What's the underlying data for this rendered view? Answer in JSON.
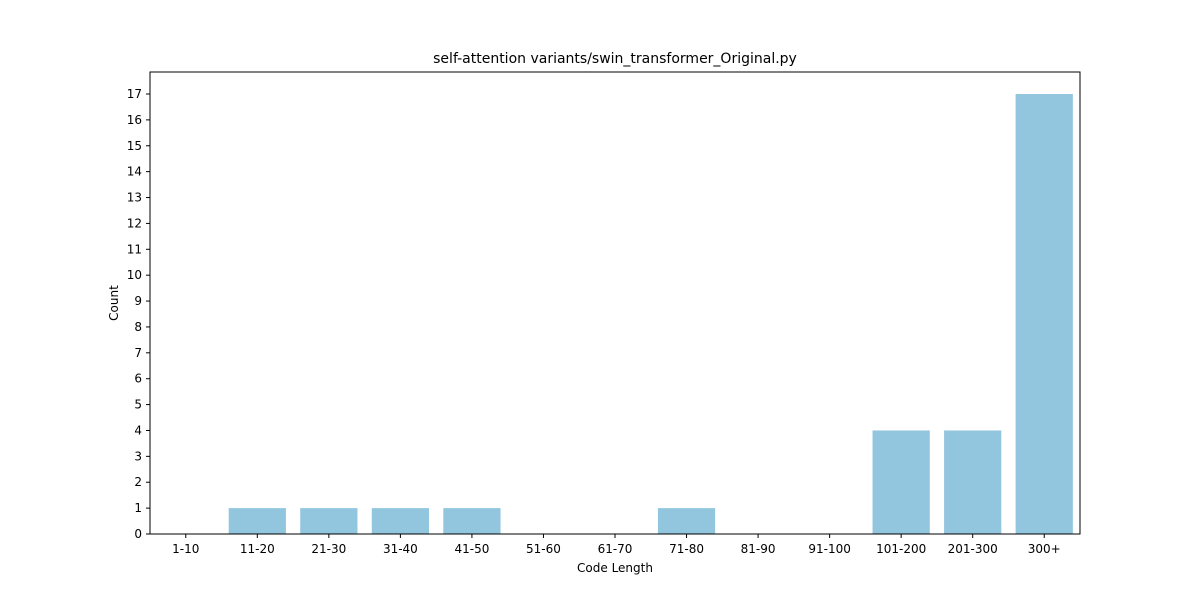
{
  "chart_data": {
    "type": "bar",
    "title": "self-attention variants/swin_transformer_Original.py",
    "xlabel": "Code Length",
    "ylabel": "Count",
    "categories": [
      "1-10",
      "11-20",
      "21-30",
      "31-40",
      "41-50",
      "51-60",
      "61-70",
      "71-80",
      "81-90",
      "91-100",
      "101-200",
      "201-300",
      "300+"
    ],
    "values": [
      0,
      1,
      1,
      1,
      1,
      0,
      0,
      1,
      0,
      0,
      4,
      4,
      17
    ],
    "ylim": [
      0,
      17.85
    ],
    "yticks": [
      0,
      1,
      2,
      3,
      4,
      5,
      6,
      7,
      8,
      9,
      10,
      11,
      12,
      13,
      14,
      15,
      16,
      17
    ],
    "grid": false,
    "bar_color": "#92c5de"
  }
}
